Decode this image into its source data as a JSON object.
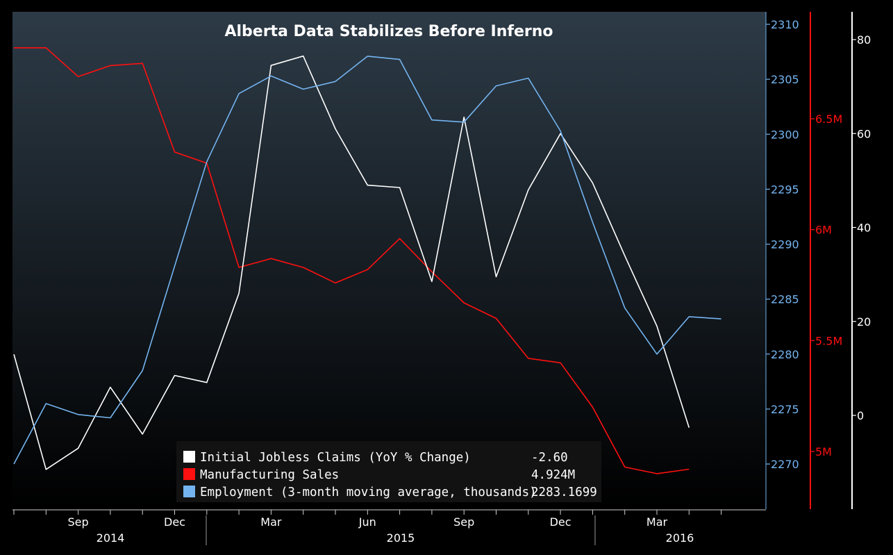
{
  "chart_data": {
    "type": "line",
    "title": "Alberta Data Stabilizes Before Inferno",
    "xlabel": "",
    "x_tick_labels": [
      {
        "month": "Sep",
        "index": 2
      },
      {
        "month": "Dec",
        "index": 5
      },
      {
        "month": "Mar",
        "index": 8
      },
      {
        "month": "Jun",
        "index": 11
      },
      {
        "month": "Sep",
        "index": 14
      },
      {
        "month": "Dec",
        "index": 17
      },
      {
        "month": "Mar",
        "index": 20
      }
    ],
    "year_labels": [
      "2014",
      "2015",
      "2016"
    ],
    "n_points": 23,
    "axes": {
      "employment": {
        "ylim": [
          2266,
          2310.5
        ],
        "ticks": [
          2270,
          2275,
          2280,
          2285,
          2290,
          2295,
          2300,
          2305,
          2310
        ],
        "color": "#74b4f0"
      },
      "manufacturing": {
        "ylim": [
          4.77,
          6.95
        ],
        "ticks": [
          5.0,
          5.5,
          6.0,
          6.5
        ],
        "tick_labels": [
          "5M",
          "5.5M",
          "6M",
          "6.5M"
        ],
        "color": "#ff1010"
      },
      "claims": {
        "ylim": [
          -20,
          82
        ],
        "ticks": [
          0,
          20,
          40,
          60,
          80
        ],
        "color": "#ffffff"
      }
    },
    "series": [
      {
        "name": "Initial Jobless Claims (YoY % Change)",
        "axis": "claims",
        "color": "#ffffff",
        "last_value": "-2.60",
        "start_index": 0,
        "values": [
          13,
          -11.5,
          -7,
          6,
          -4,
          8.5,
          7,
          26,
          74.5,
          76.5,
          61,
          49,
          48.5,
          28.5,
          63.5,
          29.5,
          48,
          60,
          49.5,
          34,
          19,
          -2.6
        ]
      },
      {
        "name": "Manufacturing Sales",
        "axis": "manufacturing",
        "color": "#ff1010",
        "last_value": "4.924M",
        "start_index": 0,
        "values": [
          6.82,
          6.82,
          6.69,
          6.74,
          6.75,
          6.35,
          6.3,
          5.83,
          5.87,
          5.83,
          5.76,
          5.82,
          5.96,
          5.81,
          5.67,
          5.6,
          5.42,
          5.4,
          5.2,
          4.93,
          4.9,
          4.92
        ]
      },
      {
        "name": "Employment (3-month moving average, thousands)",
        "axis": "employment",
        "color": "#74b4f0",
        "last_value": "2283.1699",
        "start_index": 0,
        "values": [
          2270,
          2275.5,
          2274.5,
          2274.2,
          2278.5,
          2288,
          2297.5,
          2303.7,
          2305.3,
          2304.1,
          2304.8,
          2307.1,
          2306.8,
          2301.3,
          2301.1,
          2304.4,
          2305.1,
          2300.3,
          2292,
          2284.2,
          2280,
          2283.4,
          2283.2
        ]
      }
    ],
    "legend_position": "bottom-center"
  }
}
